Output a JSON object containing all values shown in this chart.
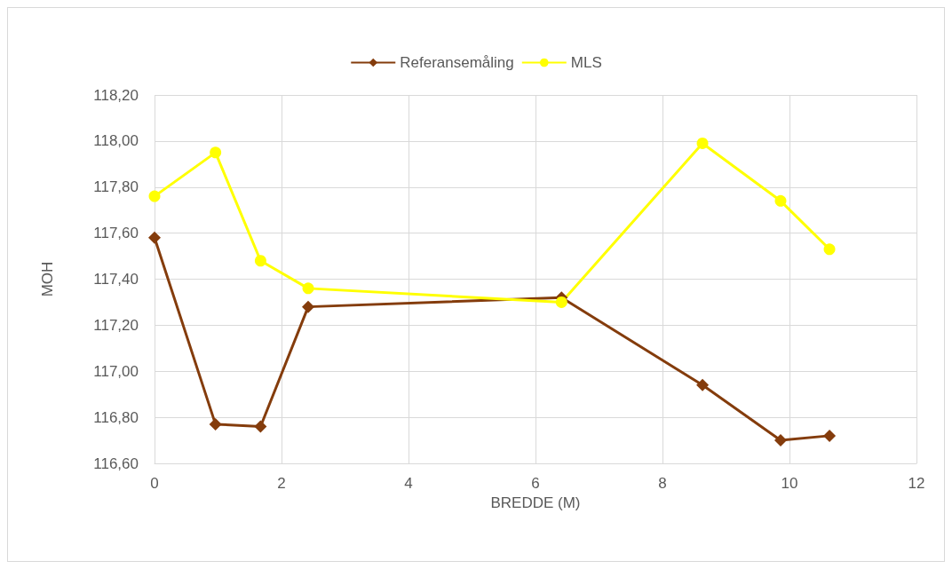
{
  "chart_data": {
    "type": "line",
    "xlabel": "BREDDE (M)",
    "ylabel": "MOH",
    "xlim": [
      0,
      12
    ],
    "xticks": [
      0,
      2,
      4,
      6,
      8,
      10,
      12
    ],
    "ylim": [
      116.6,
      118.2
    ],
    "yticks": [
      {
        "value": 116.6,
        "label": "116,60"
      },
      {
        "value": 116.8,
        "label": "116,80"
      },
      {
        "value": 117.0,
        "label": "117,00"
      },
      {
        "value": 117.2,
        "label": "117,20"
      },
      {
        "value": 117.4,
        "label": "117,40"
      },
      {
        "value": 117.6,
        "label": "117,60"
      },
      {
        "value": 117.8,
        "label": "117,80"
      },
      {
        "value": 118.0,
        "label": "118,00"
      },
      {
        "value": 118.2,
        "label": "118,20"
      }
    ],
    "grid": true,
    "legend": "top",
    "series": [
      {
        "name": "Referansemåling",
        "color": "#843c0c",
        "marker": "diamond",
        "x": [
          0,
          0.96,
          1.67,
          2.42,
          6.41,
          8.63,
          9.86,
          10.63
        ],
        "values": [
          117.58,
          116.77,
          116.76,
          117.28,
          117.32,
          116.94,
          116.7,
          116.72
        ]
      },
      {
        "name": "MLS",
        "color": "#ffff00",
        "marker": "circle",
        "x": [
          0,
          0.96,
          1.67,
          2.42,
          6.41,
          8.63,
          9.86,
          10.63
        ],
        "values": [
          117.76,
          117.95,
          117.48,
          117.36,
          117.3,
          117.99,
          117.74,
          117.53
        ]
      }
    ]
  }
}
